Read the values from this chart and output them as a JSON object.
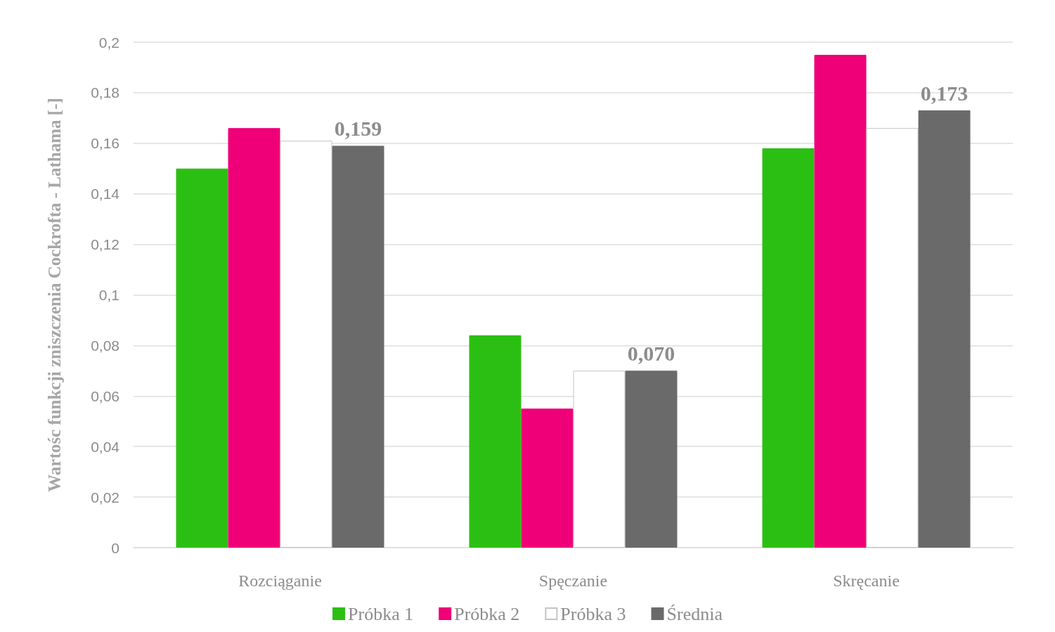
{
  "chart_data": {
    "type": "bar",
    "ylabel": "Wartośc funkcji zniszczenia Cockrofta - Lathama [-]",
    "categories": [
      "Rozciąganie",
      "Spęczanie",
      "Skręcanie"
    ],
    "series": [
      {
        "name": "Próbka 1",
        "color": "#2cbf13",
        "values": [
          0.15,
          0.084,
          0.158
        ]
      },
      {
        "name": "Próbka 2",
        "color": "#ef0078",
        "values": [
          0.166,
          0.055,
          0.195
        ]
      },
      {
        "name": "Próbka 3",
        "color": "#ffffff",
        "values": [
          0.161,
          0.07,
          0.166
        ]
      },
      {
        "name": "Średnia",
        "color": "#6a6a6a",
        "values": [
          0.159,
          0.07,
          0.173
        ],
        "value_labels": [
          "0,159",
          "0,070",
          "0,173"
        ]
      }
    ],
    "ylim": [
      0,
      0.2
    ],
    "yticks": [
      {
        "value": 0,
        "label": "0"
      },
      {
        "value": 0.02,
        "label": "0,02"
      },
      {
        "value": 0.04,
        "label": "0,04"
      },
      {
        "value": 0.06,
        "label": "0,06"
      },
      {
        "value": 0.08,
        "label": "0,08"
      },
      {
        "value": 0.1,
        "label": "0,1"
      },
      {
        "value": 0.12,
        "label": "0,12"
      },
      {
        "value": 0.14,
        "label": "0,14"
      },
      {
        "value": 0.16,
        "label": "0,16"
      },
      {
        "value": 0.18,
        "label": "0,18"
      },
      {
        "value": 0.2,
        "label": "0,2"
      }
    ],
    "grid": "y",
    "legend": "bottom"
  }
}
